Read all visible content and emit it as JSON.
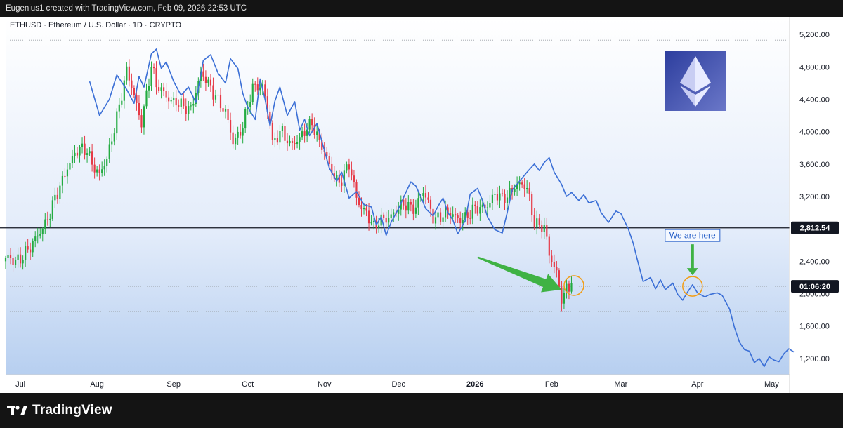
{
  "header": {
    "attribution": "Eugenius1 created with TradingView.com, Feb 09, 2026 22:53 UTC"
  },
  "footer": {
    "brand": "TradingView"
  },
  "chart_data": {
    "type": "candlestick+line",
    "title": "ETHUSD · Ethereum / U.S. Dollar · 1D · CRYPTO",
    "ylim": [
      1000,
      5400
    ],
    "yticks": [
      1200,
      1600,
      2000,
      2400,
      2800,
      3200,
      3600,
      4000,
      4400,
      4800,
      5200
    ],
    "ytick_labels": [
      "1,200.00",
      "1,600.00",
      "2,000.00",
      "2,400.00",
      "2,800.00",
      "3,200.00",
      "3,600.00",
      "4,000.00",
      "4,400.00",
      "4,800.00",
      "5,200.00"
    ],
    "xlim": [
      "2025-06-25",
      "2026-05-08"
    ],
    "xticks": [
      {
        "date": "2025-07-01",
        "label": "Jul"
      },
      {
        "date": "2025-08-01",
        "label": "Aug"
      },
      {
        "date": "2025-09-01",
        "label": "Sep"
      },
      {
        "date": "2025-10-01",
        "label": "Oct"
      },
      {
        "date": "2025-11-01",
        "label": "Nov"
      },
      {
        "date": "2025-12-01",
        "label": "Dec"
      },
      {
        "date": "2026-01-01",
        "label": "2026"
      },
      {
        "date": "2026-02-01",
        "label": "Feb"
      },
      {
        "date": "2026-03-01",
        "label": "Mar"
      },
      {
        "date": "2026-04-01",
        "label": "Apr"
      },
      {
        "date": "2026-05-01",
        "label": "May"
      }
    ],
    "horizontal_line": {
      "value": 2812.54,
      "label": "2,812.54"
    },
    "price_label": {
      "value": 2090,
      "label": "01:06:20"
    },
    "reference_levels": [
      5130,
      2090,
      1780
    ],
    "colors": {
      "up": "#22ab40",
      "down": "#e63946",
      "line": "#3b6fd6",
      "annotation": "#2a62c9",
      "circle": "#f39c12",
      "arrow": "#3fb244"
    },
    "candle_anchors": [
      [
        "2025-06-25",
        2400
      ],
      [
        "2025-07-01",
        2460
      ],
      [
        "2025-07-05",
        2530
      ],
      [
        "2025-07-09",
        2800
      ],
      [
        "2025-07-13",
        2980
      ],
      [
        "2025-07-16",
        3220
      ],
      [
        "2025-07-20",
        3600
      ],
      [
        "2025-07-23",
        3720
      ],
      [
        "2025-07-28",
        3780
      ],
      [
        "2025-08-02",
        3450
      ],
      [
        "2025-08-05",
        3630
      ],
      [
        "2025-08-09",
        4220
      ],
      [
        "2025-08-13",
        4720
      ],
      [
        "2025-08-16",
        4430
      ],
      [
        "2025-08-19",
        4150
      ],
      [
        "2025-08-23",
        4780
      ],
      [
        "2025-08-25",
        4550
      ],
      [
        "2025-08-28",
        4520
      ],
      [
        "2025-09-01",
        4350
      ],
      [
        "2025-09-04",
        4300
      ],
      [
        "2025-09-08",
        4320
      ],
      [
        "2025-09-12",
        4680
      ],
      [
        "2025-09-14",
        4620
      ],
      [
        "2025-09-18",
        4480
      ],
      [
        "2025-09-22",
        4200
      ],
      [
        "2025-09-25",
        3870
      ],
      [
        "2025-09-29",
        4100
      ],
      [
        "2025-10-03",
        4500
      ],
      [
        "2025-10-07",
        4600
      ],
      [
        "2025-10-10",
        4150
      ],
      [
        "2025-10-11",
        3820
      ],
      [
        "2025-10-15",
        4000
      ],
      [
        "2025-10-18",
        3880
      ],
      [
        "2025-10-22",
        3870
      ],
      [
        "2025-10-27",
        4150
      ],
      [
        "2025-10-30",
        3880
      ],
      [
        "2025-11-03",
        3550
      ],
      [
        "2025-11-07",
        3400
      ],
      [
        "2025-11-11",
        3560
      ],
      [
        "2025-11-14",
        3180
      ],
      [
        "2025-11-18",
        3020
      ],
      [
        "2025-11-21",
        2780
      ],
      [
        "2025-11-25",
        2950
      ],
      [
        "2025-11-30",
        3000
      ],
      [
        "2025-12-04",
        3100
      ],
      [
        "2025-12-08",
        3090
      ],
      [
        "2025-12-11",
        3230
      ],
      [
        "2025-12-15",
        2960
      ],
      [
        "2025-12-19",
        2980
      ],
      [
        "2025-12-24",
        2940
      ],
      [
        "2025-12-30",
        2970
      ],
      [
        "2026-01-04",
        3080
      ],
      [
        "2026-01-09",
        3200
      ],
      [
        "2026-01-12",
        3150
      ],
      [
        "2026-01-17",
        3350
      ],
      [
        "2026-01-22",
        3280
      ],
      [
        "2026-01-25",
        2920
      ],
      [
        "2026-01-29",
        2800
      ],
      [
        "2026-01-31",
        2450
      ],
      [
        "2026-02-03",
        2270
      ],
      [
        "2026-02-05",
        1980
      ],
      [
        "2026-02-06",
        1980
      ],
      [
        "2026-02-07",
        2070
      ],
      [
        "2026-02-09",
        2090
      ]
    ],
    "series": [
      {
        "name": "",
        "type": "line",
        "points": [
          [
            "2025-07-29",
            4620
          ],
          [
            "2025-08-02",
            4200
          ],
          [
            "2025-08-06",
            4400
          ],
          [
            "2025-08-09",
            4700
          ],
          [
            "2025-08-13",
            4520
          ],
          [
            "2025-08-16",
            4350
          ],
          [
            "2025-08-18",
            4680
          ],
          [
            "2025-08-20",
            4550
          ],
          [
            "2025-08-23",
            4960
          ],
          [
            "2025-08-25",
            5020
          ],
          [
            "2025-08-27",
            4780
          ],
          [
            "2025-08-29",
            4860
          ],
          [
            "2025-09-01",
            4620
          ],
          [
            "2025-09-04",
            4450
          ],
          [
            "2025-09-07",
            4550
          ],
          [
            "2025-09-10",
            4360
          ],
          [
            "2025-09-13",
            4880
          ],
          [
            "2025-09-16",
            4950
          ],
          [
            "2025-09-19",
            4720
          ],
          [
            "2025-09-22",
            4600
          ],
          [
            "2025-09-24",
            4900
          ],
          [
            "2025-09-27",
            4780
          ],
          [
            "2025-09-29",
            4470
          ],
          [
            "2025-10-01",
            4300
          ],
          [
            "2025-10-04",
            4150
          ],
          [
            "2025-10-06",
            4650
          ],
          [
            "2025-10-08",
            4400
          ],
          [
            "2025-10-10",
            4070
          ],
          [
            "2025-10-12",
            4380
          ],
          [
            "2025-10-14",
            4550
          ],
          [
            "2025-10-17",
            4200
          ],
          [
            "2025-10-20",
            4370
          ],
          [
            "2025-10-22",
            4020
          ],
          [
            "2025-10-24",
            4150
          ],
          [
            "2025-10-26",
            3950
          ],
          [
            "2025-10-29",
            4100
          ],
          [
            "2025-10-31",
            3880
          ],
          [
            "2025-11-03",
            3550
          ],
          [
            "2025-11-06",
            3390
          ],
          [
            "2025-11-08",
            3500
          ],
          [
            "2025-11-11",
            3180
          ],
          [
            "2025-11-14",
            3260
          ],
          [
            "2025-11-17",
            3100
          ],
          [
            "2025-11-20",
            3070
          ],
          [
            "2025-11-22",
            2850
          ],
          [
            "2025-11-24",
            2950
          ],
          [
            "2025-11-26",
            2720
          ],
          [
            "2025-11-28",
            2880
          ],
          [
            "2025-12-01",
            3050
          ],
          [
            "2025-12-04",
            3250
          ],
          [
            "2025-12-06",
            3380
          ],
          [
            "2025-12-08",
            3330
          ],
          [
            "2025-12-10",
            3200
          ],
          [
            "2025-12-12",
            3050
          ],
          [
            "2025-12-15",
            2960
          ],
          [
            "2025-12-17",
            3080
          ],
          [
            "2025-12-19",
            3180
          ],
          [
            "2025-12-21",
            3000
          ],
          [
            "2025-12-23",
            2910
          ],
          [
            "2025-12-25",
            2740
          ],
          [
            "2025-12-28",
            2900
          ],
          [
            "2025-12-30",
            3230
          ],
          [
            "2026-01-02",
            3300
          ],
          [
            "2026-01-04",
            3150
          ],
          [
            "2026-01-06",
            2950
          ],
          [
            "2026-01-09",
            2790
          ],
          [
            "2026-01-12",
            2750
          ],
          [
            "2026-01-14",
            3000
          ],
          [
            "2026-01-16",
            3280
          ],
          [
            "2026-01-19",
            3390
          ],
          [
            "2026-01-22",
            3500
          ],
          [
            "2026-01-25",
            3600
          ],
          [
            "2026-01-27",
            3520
          ],
          [
            "2026-01-29",
            3620
          ],
          [
            "2026-01-31",
            3680
          ],
          [
            "2026-02-02",
            3500
          ],
          [
            "2026-02-05",
            3350
          ],
          [
            "2026-02-07",
            3200
          ],
          [
            "2026-02-09",
            3250
          ],
          [
            "2026-02-12",
            3150
          ],
          [
            "2026-02-14",
            3220
          ],
          [
            "2026-02-16",
            3120
          ],
          [
            "2026-02-19",
            3150
          ],
          [
            "2026-02-21",
            3000
          ],
          [
            "2026-02-24",
            2880
          ],
          [
            "2026-02-27",
            3020
          ],
          [
            "2026-03-01",
            2990
          ],
          [
            "2026-03-04",
            2800
          ],
          [
            "2026-03-06",
            2620
          ],
          [
            "2026-03-08",
            2380
          ],
          [
            "2026-03-10",
            2150
          ],
          [
            "2026-03-13",
            2200
          ],
          [
            "2026-03-15",
            2060
          ],
          [
            "2026-03-17",
            2170
          ],
          [
            "2026-03-19",
            2050
          ],
          [
            "2026-03-22",
            2130
          ],
          [
            "2026-03-24",
            1990
          ],
          [
            "2026-03-26",
            1920
          ],
          [
            "2026-03-28",
            2020
          ],
          [
            "2026-03-30",
            2110
          ],
          [
            "2026-04-01",
            2010
          ],
          [
            "2026-04-04",
            1960
          ],
          [
            "2026-04-06",
            1990
          ],
          [
            "2026-04-09",
            2010
          ],
          [
            "2026-04-11",
            1980
          ],
          [
            "2026-04-14",
            1810
          ],
          [
            "2026-04-16",
            1580
          ],
          [
            "2026-04-18",
            1400
          ],
          [
            "2026-04-20",
            1310
          ],
          [
            "2026-04-22",
            1290
          ],
          [
            "2026-04-24",
            1150
          ],
          [
            "2026-04-26",
            1200
          ],
          [
            "2026-04-28",
            1100
          ],
          [
            "2026-04-30",
            1220
          ],
          [
            "2026-05-02",
            1180
          ],
          [
            "2026-05-04",
            1160
          ],
          [
            "2026-05-06",
            1260
          ],
          [
            "2026-05-08",
            1320
          ],
          [
            "2026-05-10",
            1280
          ]
        ]
      }
    ],
    "annotations": {
      "callout": {
        "text": "We are here",
        "date": "2026-03-30",
        "value": 2090
      },
      "arrow_from": {
        "date": "2026-01-02",
        "value": 2450
      },
      "arrow_to": {
        "date": "2026-02-05",
        "value": 2050
      },
      "circle_current": {
        "date": "2026-02-10",
        "value": 2100
      },
      "circle_projected": {
        "date": "2026-03-30",
        "value": 2090
      }
    }
  }
}
